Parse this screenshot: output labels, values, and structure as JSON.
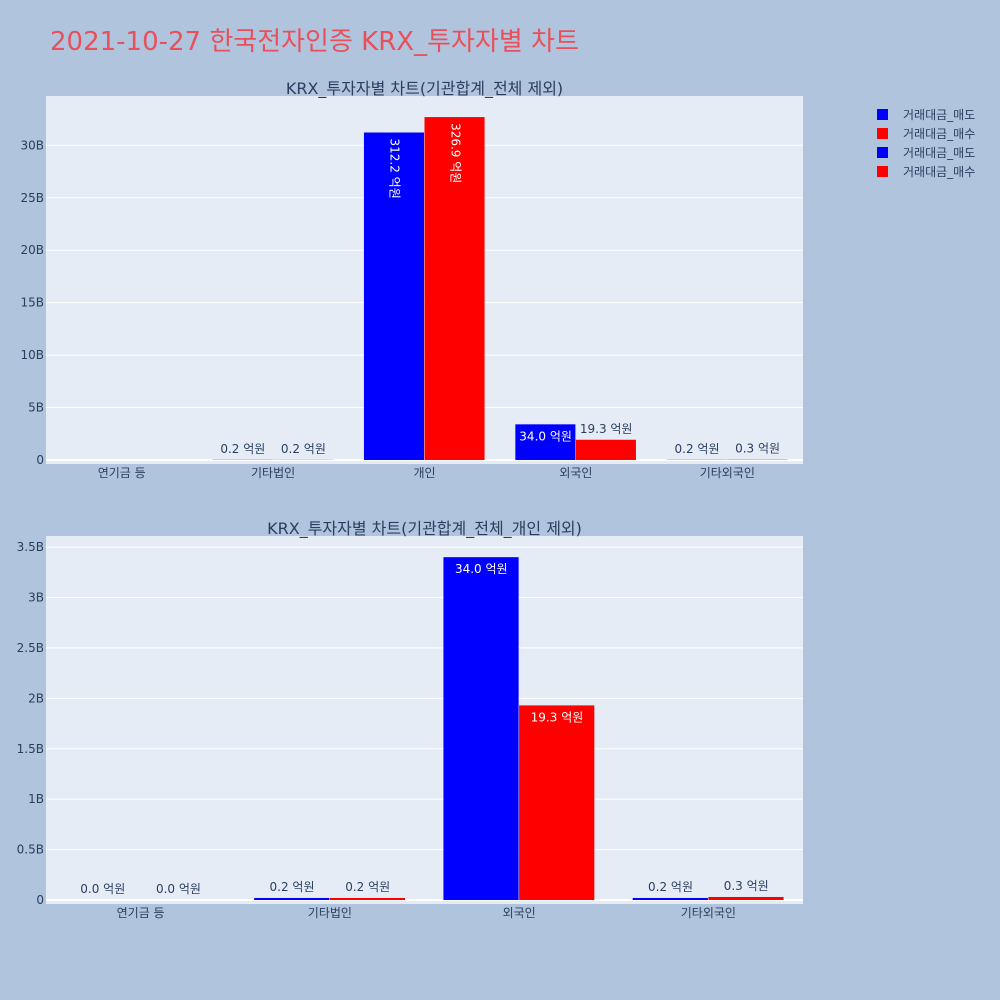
{
  "title": "2021-10-27 한국전자인증 KRX_투자자별 차트",
  "colors": {
    "background": "#b0c4de",
    "plot_bg": "#e5ecf6",
    "title": "#e8505b",
    "sell": "#0000ff",
    "buy": "#ff0000",
    "grid": "#ffffff"
  },
  "legend": {
    "items": [
      {
        "label": "거래대금_매도",
        "color": "#0000ff"
      },
      {
        "label": "거래대금_매수",
        "color": "#ff0000"
      },
      {
        "label": "거래대금_매도",
        "color": "#0000ff"
      },
      {
        "label": "거래대금_매수",
        "color": "#ff0000"
      }
    ]
  },
  "chart_data": [
    {
      "type": "bar",
      "title": "KRX_투자자별 차트(기관합계_전체 제외)",
      "categories": [
        "연기금 등",
        "기타법인",
        "개인",
        "외국인",
        "기타외국인"
      ],
      "series": [
        {
          "name": "거래대금_매도",
          "values": [
            0,
            20000000,
            31220000000,
            3400000000,
            20000000
          ],
          "labels": [
            "",
            "0.2 억원",
            "312.2 억원",
            "34.0 억원",
            "0.2 억원"
          ]
        },
        {
          "name": "거래대금_매수",
          "values": [
            0,
            20000000,
            32690000000,
            1930000000,
            30000000
          ],
          "labels": [
            "",
            "0.2 억원",
            "326.9 억원",
            "19.3 억원",
            "0.3 억원"
          ]
        }
      ],
      "ylim": [
        0,
        34700000000
      ],
      "yticks": [
        0,
        5000000000,
        10000000000,
        15000000000,
        20000000000,
        25000000000,
        30000000000
      ],
      "ytick_labels": [
        "0",
        "5B",
        "10B",
        "15B",
        "20B",
        "25B",
        "30B"
      ],
      "grid": true
    },
    {
      "type": "bar",
      "title": "KRX_투자자별 차트(기관합계_전체_개인 제외)",
      "categories": [
        "연기금 등",
        "기타법인",
        "외국인",
        "기타외국인"
      ],
      "series": [
        {
          "name": "거래대금_매도",
          "values": [
            0,
            20000000,
            3400000000,
            20000000
          ],
          "labels": [
            "0.0 억원",
            "0.2 억원",
            "34.0 억원",
            "0.2 억원"
          ]
        },
        {
          "name": "거래대금_매수",
          "values": [
            0,
            20000000,
            1930000000,
            30000000
          ],
          "labels": [
            "0.0 억원",
            "0.2 억원",
            "19.3 억원",
            "0.3 억원"
          ]
        }
      ],
      "ylim": [
        0,
        3610000000
      ],
      "yticks": [
        0,
        500000000,
        1000000000,
        1500000000,
        2000000000,
        2500000000,
        3000000000,
        3500000000
      ],
      "ytick_labels": [
        "0",
        "0.5B",
        "1B",
        "1.5B",
        "2B",
        "2.5B",
        "3B",
        "3.5B"
      ],
      "grid": true
    }
  ]
}
